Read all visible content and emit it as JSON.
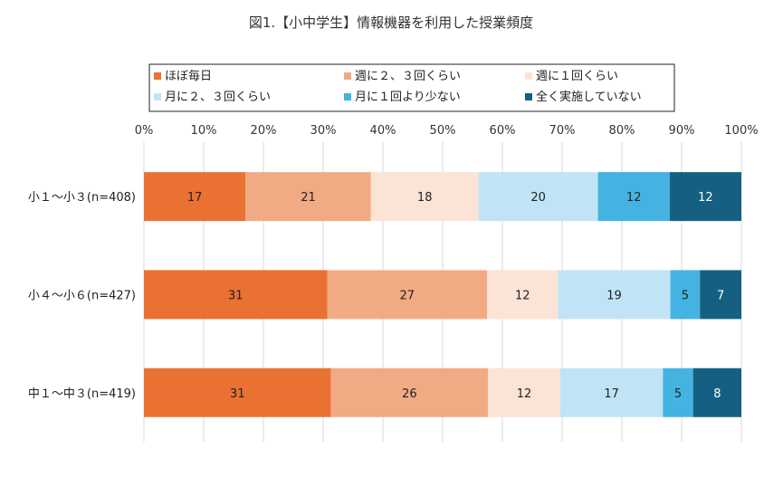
{
  "chart_data": {
    "type": "bar",
    "orientation": "horizontal",
    "stacked": true,
    "percent_axis": true,
    "title": "図1.【小中学生】情報機器を利用した授業頻度",
    "categories": [
      "小１～小３(n=408)",
      "小４～小６(n=427)",
      "中１～中３(n=419)"
    ],
    "x_ticks": [
      "0%",
      "10%",
      "20%",
      "30%",
      "40%",
      "50%",
      "60%",
      "70%",
      "80%",
      "90%",
      "100%"
    ],
    "xlim": [
      0,
      100
    ],
    "grid": true,
    "legend_position": "top",
    "series": [
      {
        "name": "ほぼ毎日",
        "color": "#E97132",
        "label_color": "#222222",
        "values": [
          17,
          31,
          31
        ]
      },
      {
        "name": "週に２、３回くらい",
        "color": "#F2AA84",
        "label_color": "#222222",
        "values": [
          21,
          27,
          26
        ]
      },
      {
        "name": "週に１回くらい",
        "color": "#FBE3D6",
        "label_color": "#222222",
        "values": [
          18,
          12,
          12
        ]
      },
      {
        "name": "月に２、３回くらい",
        "color": "#C0E4F5",
        "label_color": "#222222",
        "values": [
          20,
          19,
          17
        ]
      },
      {
        "name": "月に１回より少ない",
        "color": "#44B3E1",
        "label_color": "#222222",
        "values": [
          12,
          5,
          5
        ]
      },
      {
        "name": "全く実施していない",
        "color": "#156082",
        "label_color": "#ffffff",
        "values": [
          12,
          7,
          8
        ]
      }
    ]
  }
}
